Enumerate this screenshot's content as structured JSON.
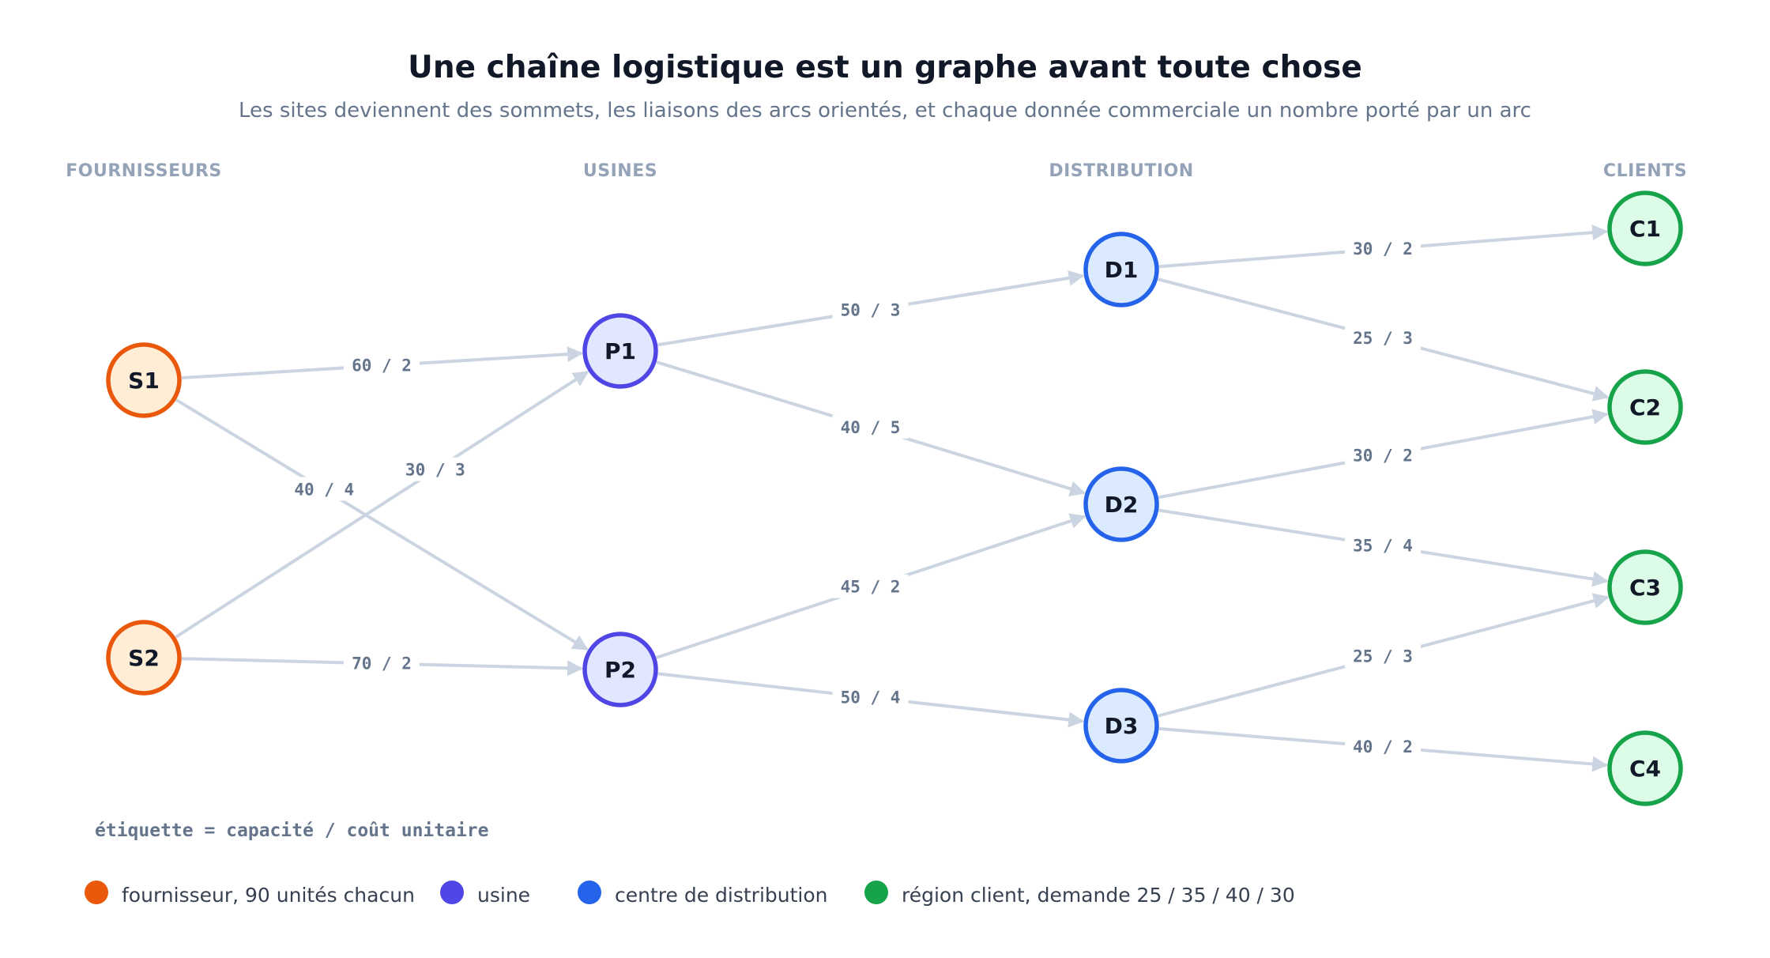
{
  "title": "Une chaîne logistique est un graphe avant toute chose",
  "subtitle": "Les sites deviennent des sommets, les liaisons des arcs orientés, et chaque donnée commerciale un nombre porté par un arc",
  "columns": [
    {
      "id": "col-suppliers",
      "label": "FOURNISSEURS"
    },
    {
      "id": "col-plants",
      "label": "USINES"
    },
    {
      "id": "col-distribution",
      "label": "DISTRIBUTION"
    },
    {
      "id": "col-clients",
      "label": "CLIENTS"
    }
  ],
  "node_styles": {
    "supplier": {
      "stroke": "#ea580c",
      "fill": "#ffedd5"
    },
    "plant": {
      "stroke": "#4f46e5",
      "fill": "#e0e7ff"
    },
    "distribution": {
      "stroke": "#2563eb",
      "fill": "#dbeafe"
    },
    "client": {
      "stroke": "#16a34a",
      "fill": "#dcfce7"
    }
  },
  "nodes": [
    {
      "id": "S1",
      "label": "S1",
      "type": "supplier"
    },
    {
      "id": "S2",
      "label": "S2",
      "type": "supplier"
    },
    {
      "id": "P1",
      "label": "P1",
      "type": "plant"
    },
    {
      "id": "P2",
      "label": "P2",
      "type": "plant"
    },
    {
      "id": "D1",
      "label": "D1",
      "type": "distribution"
    },
    {
      "id": "D2",
      "label": "D2",
      "type": "distribution"
    },
    {
      "id": "D3",
      "label": "D3",
      "type": "distribution"
    },
    {
      "id": "C1",
      "label": "C1",
      "type": "client"
    },
    {
      "id": "C2",
      "label": "C2",
      "type": "client"
    },
    {
      "id": "C3",
      "label": "C3",
      "type": "client"
    },
    {
      "id": "C4",
      "label": "C4",
      "type": "client"
    }
  ],
  "edges": [
    {
      "from": "S1",
      "to": "P1",
      "label": "60 / 2"
    },
    {
      "from": "S1",
      "to": "P2",
      "label": "40 / 4"
    },
    {
      "from": "S2",
      "to": "P1",
      "label": "30 / 3"
    },
    {
      "from": "S2",
      "to": "P2",
      "label": "70 / 2"
    },
    {
      "from": "P1",
      "to": "D1",
      "label": "50 / 3"
    },
    {
      "from": "P1",
      "to": "D2",
      "label": "40 / 5"
    },
    {
      "from": "P2",
      "to": "D2",
      "label": "45 / 2"
    },
    {
      "from": "P2",
      "to": "D3",
      "label": "50 / 4"
    },
    {
      "from": "D1",
      "to": "C1",
      "label": "30 / 2"
    },
    {
      "from": "D1",
      "to": "C2",
      "label": "25 / 3"
    },
    {
      "from": "D2",
      "to": "C2",
      "label": "30 / 2"
    },
    {
      "from": "D2",
      "to": "C3",
      "label": "35 / 4"
    },
    {
      "from": "D3",
      "to": "C3",
      "label": "25 / 3"
    },
    {
      "from": "D3",
      "to": "C4",
      "label": "40 / 2"
    }
  ],
  "note": "étiquette = capacité / coût unitaire",
  "legend": [
    {
      "type": "supplier",
      "color": "#ea580c",
      "label": "fournisseur, 90 unités chacun"
    },
    {
      "type": "plant",
      "color": "#4f46e5",
      "label": "usine"
    },
    {
      "type": "distribution",
      "color": "#2563eb",
      "label": "centre de distribution"
    },
    {
      "type": "client",
      "color": "#16a34a",
      "label": "région client, demande 25 / 35 / 40 / 30"
    }
  ]
}
